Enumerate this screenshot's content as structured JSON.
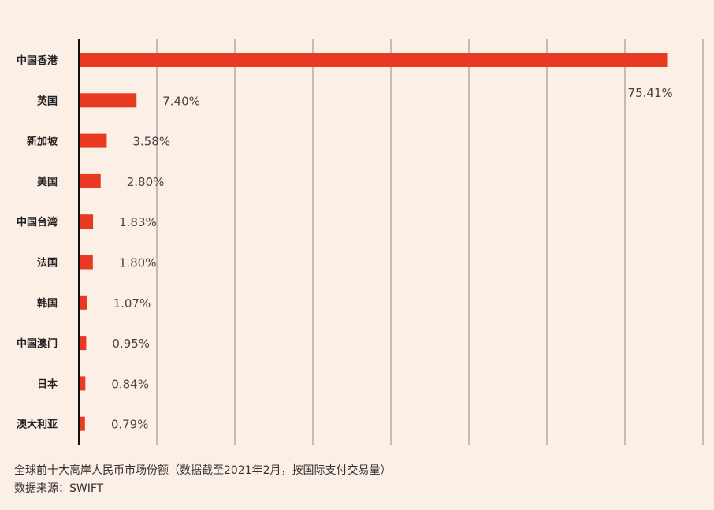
{
  "colors": {
    "background": "#fcefe6",
    "bar": "#e83a23",
    "grid": "#8a8a8a",
    "axis": "#111111"
  },
  "chart_data": {
    "type": "bar",
    "orientation": "horizontal",
    "categories": [
      "中国香港",
      "英国",
      "新加坡",
      "美国",
      "中国台湾",
      "法国",
      "韩国",
      "中国澳门",
      "日本",
      "澳大利亚"
    ],
    "values": [
      75.41,
      7.4,
      3.58,
      2.8,
      1.83,
      1.8,
      1.07,
      0.95,
      0.84,
      0.79
    ],
    "data_labels": [
      "75.41%",
      "7.40%",
      "3.58%",
      "2.80%",
      "1.83%",
      "1.80%",
      "1.07%",
      "0.95%",
      "0.84%",
      "0.79%"
    ],
    "xlim": [
      0,
      80
    ],
    "x_grid_step": 10,
    "grid": true,
    "xlabel": "",
    "ylabel": ""
  },
  "caption": {
    "line1": "全球前十大离岸人民币市场份额（数据截至2021年2月，按国际支付交易量）",
    "line2": "数据来源：SWIFT"
  }
}
